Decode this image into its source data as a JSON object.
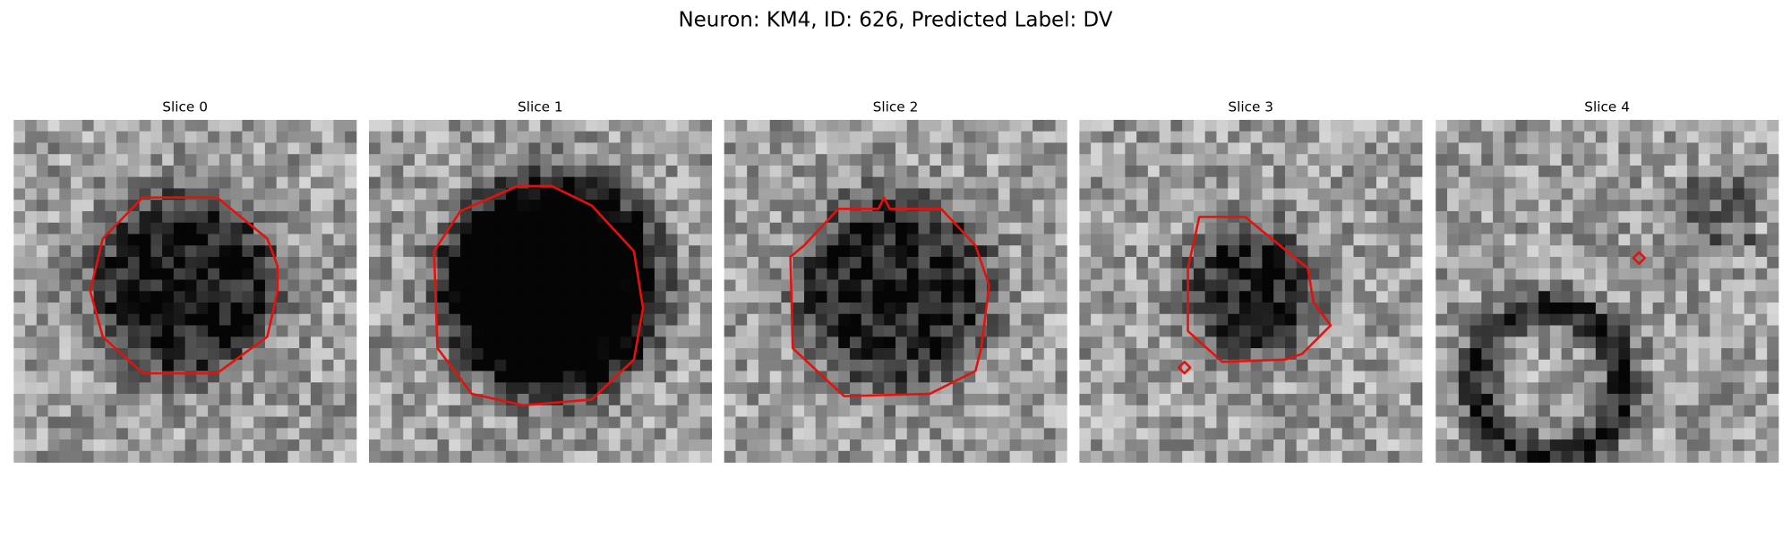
{
  "header": {
    "title": "Neuron: KM4, ID: 626, Predicted Label: DV"
  },
  "panels": [
    {
      "title": "Slice 0"
    },
    {
      "title": "Slice 1"
    },
    {
      "title": "Slice 2"
    },
    {
      "title": "Slice 3"
    },
    {
      "title": "Slice 4"
    }
  ]
}
